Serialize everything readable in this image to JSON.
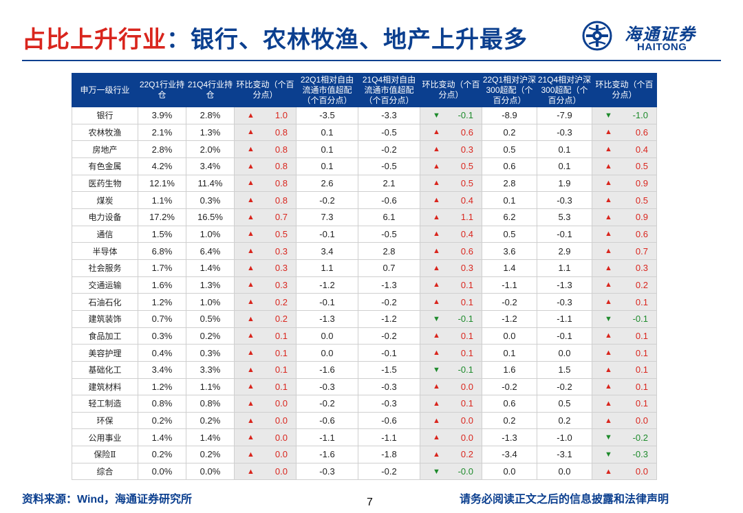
{
  "title": {
    "highlight": "占比上升行业",
    "rest": "：银行、农林牧渔、地产上升最多"
  },
  "logo": {
    "cn": "海通证券",
    "en": "HAITONG",
    "icon": "haitong-logo-icon"
  },
  "colors": {
    "primary": "#0b3f8f",
    "up": "#d9251d",
    "down": "#1d8a2b",
    "change_bg": "#e9e9e9"
  },
  "table": {
    "headers": [
      "申万一级行业",
      "22Q1行业持仓",
      "21Q4行业持仓",
      "环比变动（个百分点）",
      "22Q1相对自由流通市值超配（个百分点）",
      "21Q4相对自由流通市值超配（个百分点）",
      "环比变动（个百分点）",
      "22Q1相对沪深300超配（个百分点）",
      "21Q4相对沪深300超配（个百分点）",
      "环比变动（个百分点）"
    ],
    "rows": [
      {
        "name": "银行",
        "q1": "3.9%",
        "q4": "2.8%",
        "chg1": "1.0",
        "d1": "up",
        "ff1": "-3.5",
        "ff4": "-3.3",
        "chg2": "-0.1",
        "d2": "down",
        "hs1": "-8.9",
        "hs4": "-7.9",
        "chg3": "-1.0",
        "d3": "down"
      },
      {
        "name": "农林牧渔",
        "q1": "2.1%",
        "q4": "1.3%",
        "chg1": "0.8",
        "d1": "up",
        "ff1": "0.1",
        "ff4": "-0.5",
        "chg2": "0.6",
        "d2": "up",
        "hs1": "0.2",
        "hs4": "-0.3",
        "chg3": "0.6",
        "d3": "up"
      },
      {
        "name": "房地产",
        "q1": "2.8%",
        "q4": "2.0%",
        "chg1": "0.8",
        "d1": "up",
        "ff1": "0.1",
        "ff4": "-0.2",
        "chg2": "0.3",
        "d2": "up",
        "hs1": "0.5",
        "hs4": "0.1",
        "chg3": "0.4",
        "d3": "up"
      },
      {
        "name": "有色金属",
        "q1": "4.2%",
        "q4": "3.4%",
        "chg1": "0.8",
        "d1": "up",
        "ff1": "0.1",
        "ff4": "-0.5",
        "chg2": "0.5",
        "d2": "up",
        "hs1": "0.6",
        "hs4": "0.1",
        "chg3": "0.5",
        "d3": "up"
      },
      {
        "name": "医药生物",
        "q1": "12.1%",
        "q4": "11.4%",
        "chg1": "0.8",
        "d1": "up",
        "ff1": "2.6",
        "ff4": "2.1",
        "chg2": "0.5",
        "d2": "up",
        "hs1": "2.8",
        "hs4": "1.9",
        "chg3": "0.9",
        "d3": "up"
      },
      {
        "name": "煤炭",
        "q1": "1.1%",
        "q4": "0.3%",
        "chg1": "0.8",
        "d1": "up",
        "ff1": "-0.2",
        "ff4": "-0.6",
        "chg2": "0.4",
        "d2": "up",
        "hs1": "0.1",
        "hs4": "-0.3",
        "chg3": "0.5",
        "d3": "up"
      },
      {
        "name": "电力设备",
        "q1": "17.2%",
        "q4": "16.5%",
        "chg1": "0.7",
        "d1": "up",
        "ff1": "7.3",
        "ff4": "6.1",
        "chg2": "1.1",
        "d2": "up",
        "hs1": "6.2",
        "hs4": "5.3",
        "chg3": "0.9",
        "d3": "up"
      },
      {
        "name": "通信",
        "q1": "1.5%",
        "q4": "1.0%",
        "chg1": "0.5",
        "d1": "up",
        "ff1": "-0.1",
        "ff4": "-0.5",
        "chg2": "0.4",
        "d2": "up",
        "hs1": "0.5",
        "hs4": "-0.1",
        "chg3": "0.6",
        "d3": "up"
      },
      {
        "name": "半导体",
        "q1": "6.8%",
        "q4": "6.4%",
        "chg1": "0.3",
        "d1": "up",
        "ff1": "3.4",
        "ff4": "2.8",
        "chg2": "0.6",
        "d2": "up",
        "hs1": "3.6",
        "hs4": "2.9",
        "chg3": "0.7",
        "d3": "up"
      },
      {
        "name": "社会服务",
        "q1": "1.7%",
        "q4": "1.4%",
        "chg1": "0.3",
        "d1": "up",
        "ff1": "1.1",
        "ff4": "0.7",
        "chg2": "0.3",
        "d2": "up",
        "hs1": "1.4",
        "hs4": "1.1",
        "chg3": "0.3",
        "d3": "up"
      },
      {
        "name": "交通运输",
        "q1": "1.6%",
        "q4": "1.3%",
        "chg1": "0.3",
        "d1": "up",
        "ff1": "-1.2",
        "ff4": "-1.3",
        "chg2": "0.1",
        "d2": "up",
        "hs1": "-1.1",
        "hs4": "-1.3",
        "chg3": "0.2",
        "d3": "up"
      },
      {
        "name": "石油石化",
        "q1": "1.2%",
        "q4": "1.0%",
        "chg1": "0.2",
        "d1": "up",
        "ff1": "-0.1",
        "ff4": "-0.2",
        "chg2": "0.1",
        "d2": "up",
        "hs1": "-0.2",
        "hs4": "-0.3",
        "chg3": "0.1",
        "d3": "up"
      },
      {
        "name": "建筑装饰",
        "q1": "0.7%",
        "q4": "0.5%",
        "chg1": "0.2",
        "d1": "up",
        "ff1": "-1.3",
        "ff4": "-1.2",
        "chg2": "-0.1",
        "d2": "down",
        "hs1": "-1.2",
        "hs4": "-1.1",
        "chg3": "-0.1",
        "d3": "down"
      },
      {
        "name": "食品加工",
        "q1": "0.3%",
        "q4": "0.2%",
        "chg1": "0.1",
        "d1": "up",
        "ff1": "0.0",
        "ff4": "-0.2",
        "chg2": "0.1",
        "d2": "up",
        "hs1": "0.0",
        "hs4": "-0.1",
        "chg3": "0.1",
        "d3": "up"
      },
      {
        "name": "美容护理",
        "q1": "0.4%",
        "q4": "0.3%",
        "chg1": "0.1",
        "d1": "up",
        "ff1": "0.0",
        "ff4": "-0.1",
        "chg2": "0.1",
        "d2": "up",
        "hs1": "0.1",
        "hs4": "0.0",
        "chg3": "0.1",
        "d3": "up"
      },
      {
        "name": "基础化工",
        "q1": "3.4%",
        "q4": "3.3%",
        "chg1": "0.1",
        "d1": "up",
        "ff1": "-1.6",
        "ff4": "-1.5",
        "chg2": "-0.1",
        "d2": "down",
        "hs1": "1.6",
        "hs4": "1.5",
        "chg3": "0.1",
        "d3": "up"
      },
      {
        "name": "建筑材料",
        "q1": "1.2%",
        "q4": "1.1%",
        "chg1": "0.1",
        "d1": "up",
        "ff1": "-0.3",
        "ff4": "-0.3",
        "chg2": "0.0",
        "d2": "up",
        "hs1": "-0.2",
        "hs4": "-0.2",
        "chg3": "0.1",
        "d3": "up"
      },
      {
        "name": "轻工制造",
        "q1": "0.8%",
        "q4": "0.8%",
        "chg1": "0.0",
        "d1": "up",
        "ff1": "-0.2",
        "ff4": "-0.3",
        "chg2": "0.1",
        "d2": "up",
        "hs1": "0.6",
        "hs4": "0.5",
        "chg3": "0.1",
        "d3": "up"
      },
      {
        "name": "环保",
        "q1": "0.2%",
        "q4": "0.2%",
        "chg1": "0.0",
        "d1": "up",
        "ff1": "-0.6",
        "ff4": "-0.6",
        "chg2": "0.0",
        "d2": "up",
        "hs1": "0.2",
        "hs4": "0.2",
        "chg3": "0.0",
        "d3": "up"
      },
      {
        "name": "公用事业",
        "q1": "1.4%",
        "q4": "1.4%",
        "chg1": "0.0",
        "d1": "up",
        "ff1": "-1.1",
        "ff4": "-1.1",
        "chg2": "0.0",
        "d2": "up",
        "hs1": "-1.3",
        "hs4": "-1.0",
        "chg3": "-0.2",
        "d3": "down"
      },
      {
        "name": "保险Ⅱ",
        "q1": "0.2%",
        "q4": "0.2%",
        "chg1": "0.0",
        "d1": "up",
        "ff1": "-1.6",
        "ff4": "-1.8",
        "chg2": "0.2",
        "d2": "up",
        "hs1": "-3.4",
        "hs4": "-3.1",
        "chg3": "-0.3",
        "d3": "down"
      },
      {
        "name": "综合",
        "q1": "0.0%",
        "q4": "0.0%",
        "chg1": "0.0",
        "d1": "up",
        "ff1": "-0.3",
        "ff4": "-0.2",
        "chg2": "-0.0",
        "d2": "down",
        "hs1": "0.0",
        "hs4": "0.0",
        "chg3": "0.0",
        "d3": "up"
      }
    ]
  },
  "footer": {
    "source_label": "资料来源：",
    "source_wind": "Wind",
    "source_rest": "，海通证券研究所",
    "page": "7",
    "disclaimer": "请务必阅读正文之后的信息披露和法律声明"
  }
}
